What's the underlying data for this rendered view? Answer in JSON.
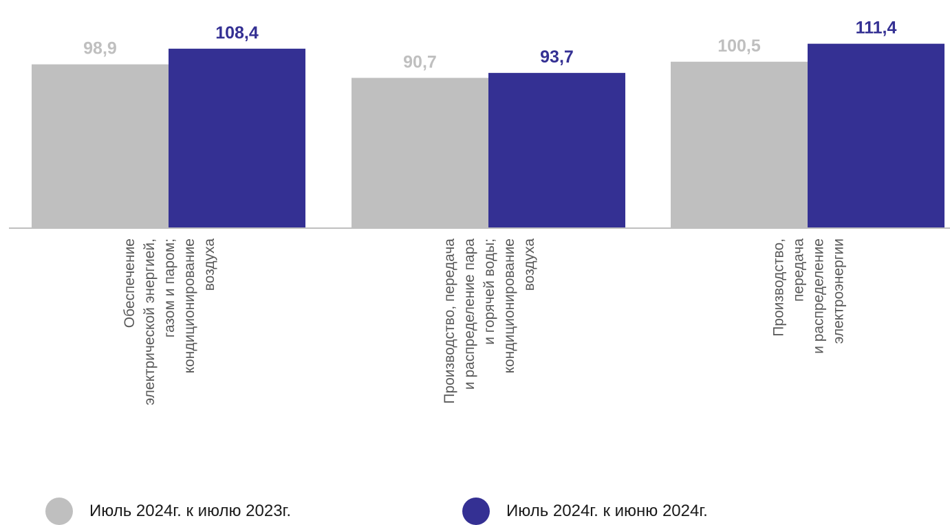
{
  "colors": {
    "series1": "#bfbfbf",
    "series2": "#343093",
    "axis": "#bfbfbf",
    "category_text": "#595959"
  },
  "chart_data": {
    "type": "bar",
    "categories": [
      [
        "Обеспечение",
        "электрической энергией,",
        "газом и паром;",
        "кондиционирование",
        "воздуха"
      ],
      [
        "Производство, передача",
        "и распределение пара",
        "и горячей воды;",
        "кондиционирование",
        "воздуха"
      ],
      [
        "Производство,",
        "передача",
        "и распределение",
        "электроэнергии"
      ]
    ],
    "series": [
      {
        "name": "Июль 2024г. к июлю 2023г.",
        "values": [
          98.9,
          90.7,
          100.5
        ],
        "labels": [
          "98,9",
          "90,7",
          "100,5"
        ]
      },
      {
        "name": "Июль 2024г. к июню 2024г.",
        "values": [
          108.4,
          93.7,
          111.4
        ],
        "labels": [
          "108,4",
          "93,7",
          "111,4"
        ]
      }
    ],
    "title": "",
    "xlabel": "",
    "ylabel": "",
    "ylim": [
      0,
      126
    ],
    "grid": false,
    "legend_position": "bottom"
  }
}
